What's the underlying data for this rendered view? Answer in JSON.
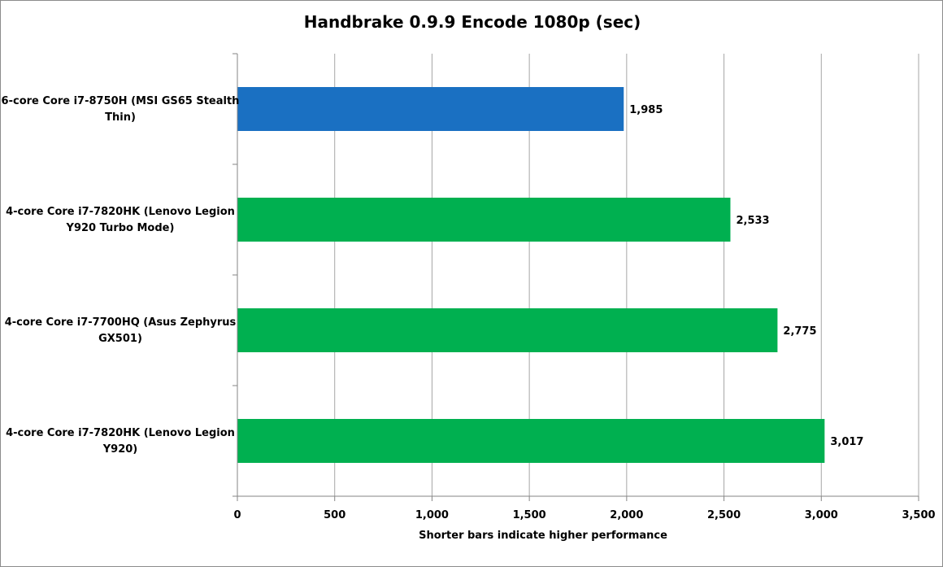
{
  "chart_data": {
    "type": "bar",
    "orientation": "horizontal",
    "title": "Handbrake 0.9.9 Encode 1080p (sec)",
    "xlabel": "Shorter bars indicate higher performance",
    "ylabel": "",
    "xlim": [
      0,
      3500
    ],
    "x_ticks": [
      0,
      500,
      1000,
      1500,
      2000,
      2500,
      3000,
      3500
    ],
    "x_tick_labels": [
      "0",
      "500",
      "1,000",
      "1,500",
      "2,000",
      "2,500",
      "3,000",
      "3,500"
    ],
    "grid": true,
    "legend": "none",
    "categories": [
      [
        "6-core Core i7-8750H (MSI GS65 Stealth",
        "Thin)"
      ],
      [
        "4-core Core i7-7820HK (Lenovo Legion",
        "Y920 Turbo Mode)"
      ],
      [
        "4-core Core i7-7700HQ (Asus Zephyrus",
        "GX501)"
      ],
      [
        "4-core Core i7-7820HK (Lenovo Legion",
        "Y920)"
      ]
    ],
    "values": [
      1985,
      2533,
      2775,
      3017
    ],
    "value_labels": [
      "1,985",
      "2,533",
      "2,775",
      "3,017"
    ],
    "bar_colors": [
      "#1a70c2",
      "#00b050",
      "#00b050",
      "#00b050"
    ],
    "grid_color": "#a6a6a6",
    "axis_color": "#868686"
  }
}
